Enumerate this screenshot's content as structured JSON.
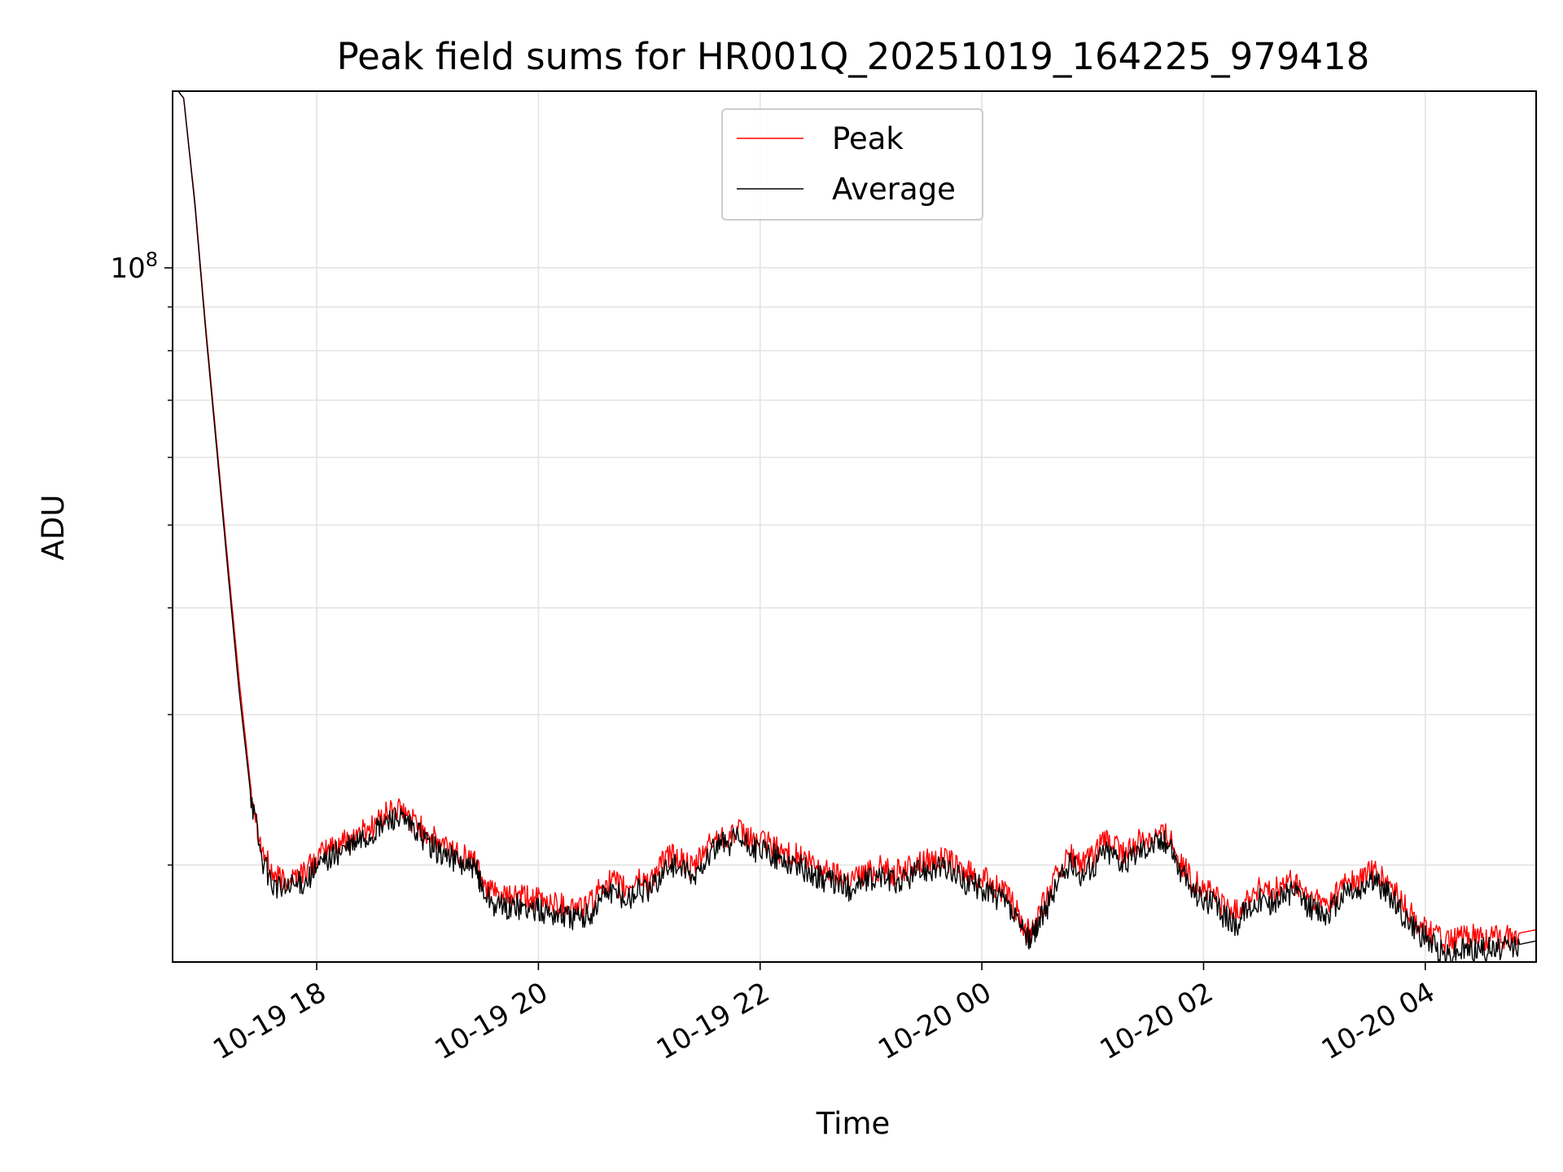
{
  "chart_data": {
    "type": "line",
    "title": "Peak field sums for HR001Q_20251019_164225_979418",
    "xlabel": "Time",
    "ylabel": "ADU",
    "y_scale": "log",
    "ylim": [
      15400000,
      161000000
    ],
    "xlim_hours": [
      16.7,
      29.0
    ],
    "x_ticks": [
      {
        "hour": 18,
        "label": "10-19 18"
      },
      {
        "hour": 20,
        "label": "10-19 20"
      },
      {
        "hour": 22,
        "label": "10-19 22"
      },
      {
        "hour": 24,
        "label": "10-20 00"
      },
      {
        "hour": 26,
        "label": "10-20 02"
      },
      {
        "hour": 28,
        "label": "10-20 04"
      }
    ],
    "y_major_ticks": [
      {
        "value": 100000000,
        "base": "10",
        "exponent": "8"
      }
    ],
    "y_minor_ticks": [
      20000000,
      30000000,
      40000000,
      50000000,
      60000000,
      70000000,
      80000000,
      90000000,
      200000000
    ],
    "grid": true,
    "legend_position": "upper center",
    "legend": [
      "Peak",
      "Average"
    ],
    "series": [
      {
        "name": "Peak",
        "color": "#ff0000",
        "points": [
          [
            16.75,
            161000000
          ],
          [
            16.8,
            158000000
          ],
          [
            16.9,
            120000000
          ],
          [
            17.0,
            85000000
          ],
          [
            17.1,
            62000000
          ],
          [
            17.2,
            45000000
          ],
          [
            17.3,
            33000000
          ],
          [
            17.4,
            25000000
          ],
          [
            17.5,
            21000000
          ],
          [
            17.6,
            19500000
          ],
          [
            17.7,
            19200000
          ],
          [
            17.8,
            19400000
          ],
          [
            17.9,
            19700000
          ],
          [
            18.0,
            20300000
          ],
          [
            18.1,
            20900000
          ],
          [
            18.2,
            21200000
          ],
          [
            18.3,
            21500000
          ],
          [
            18.4,
            21900000
          ],
          [
            18.5,
            22200000
          ],
          [
            18.6,
            22800000
          ],
          [
            18.7,
            23300000
          ],
          [
            18.8,
            22900000
          ],
          [
            18.9,
            22400000
          ],
          [
            19.0,
            21800000
          ],
          [
            19.1,
            21200000
          ],
          [
            19.2,
            21000000
          ],
          [
            19.3,
            20600000
          ],
          [
            19.4,
            20300000
          ],
          [
            19.45,
            20100000
          ],
          [
            19.5,
            19200000
          ],
          [
            19.6,
            18500000
          ],
          [
            19.7,
            18300000
          ],
          [
            19.8,
            18400000
          ],
          [
            19.9,
            18300000
          ],
          [
            20.0,
            18200000
          ],
          [
            20.1,
            18100000
          ],
          [
            20.2,
            18000000
          ],
          [
            20.3,
            17900000
          ],
          [
            20.4,
            17800000
          ],
          [
            20.5,
            18200000
          ],
          [
            20.6,
            19200000
          ],
          [
            20.7,
            19000000
          ],
          [
            20.8,
            18700000
          ],
          [
            20.9,
            19300000
          ],
          [
            21.0,
            19100000
          ],
          [
            21.1,
            20000000
          ],
          [
            21.2,
            20600000
          ],
          [
            21.3,
            20200000
          ],
          [
            21.4,
            19700000
          ],
          [
            21.5,
            20800000
          ],
          [
            21.6,
            21500000
          ],
          [
            21.7,
            21700000
          ],
          [
            21.8,
            21900000
          ],
          [
            21.9,
            21500000
          ],
          [
            22.0,
            21300000
          ],
          [
            22.1,
            21100000
          ],
          [
            22.2,
            20700000
          ],
          [
            22.3,
            20600000
          ],
          [
            22.4,
            20300000
          ],
          [
            22.5,
            19900000
          ],
          [
            22.6,
            19700000
          ],
          [
            22.7,
            19500000
          ],
          [
            22.8,
            19300000
          ],
          [
            22.9,
            19500000
          ],
          [
            23.0,
            19700000
          ],
          [
            23.1,
            19900000
          ],
          [
            23.2,
            19600000
          ],
          [
            23.3,
            19700000
          ],
          [
            23.4,
            20100000
          ],
          [
            23.5,
            20300000
          ],
          [
            23.6,
            20400000
          ],
          [
            23.7,
            20200000
          ],
          [
            23.8,
            19800000
          ],
          [
            23.9,
            19500000
          ],
          [
            24.0,
            19300000
          ],
          [
            24.1,
            19000000
          ],
          [
            24.2,
            18600000
          ],
          [
            24.3,
            17800000
          ],
          [
            24.4,
            16800000
          ],
          [
            24.45,
            16900000
          ],
          [
            24.5,
            17500000
          ],
          [
            24.6,
            18500000
          ],
          [
            24.7,
            19800000
          ],
          [
            24.8,
            20500000
          ],
          [
            24.9,
            20000000
          ],
          [
            25.0,
            20400000
          ],
          [
            25.1,
            21300000
          ],
          [
            25.2,
            21100000
          ],
          [
            25.3,
            20500000
          ],
          [
            25.4,
            21300000
          ],
          [
            25.5,
            21600000
          ],
          [
            25.6,
            21800000
          ],
          [
            25.7,
            21700000
          ],
          [
            25.8,
            20000000
          ],
          [
            25.9,
            19200000
          ],
          [
            26.0,
            18800000
          ],
          [
            26.1,
            18500000
          ],
          [
            26.2,
            17800000
          ],
          [
            26.3,
            17600000
          ],
          [
            26.4,
            18300000
          ],
          [
            26.5,
            18800000
          ],
          [
            26.6,
            18500000
          ],
          [
            26.7,
            18900000
          ],
          [
            26.8,
            19100000
          ],
          [
            26.9,
            18600000
          ],
          [
            27.0,
            18200000
          ],
          [
            27.1,
            18000000
          ],
          [
            27.2,
            18500000
          ],
          [
            27.3,
            19300000
          ],
          [
            27.4,
            19000000
          ],
          [
            27.5,
            19800000
          ],
          [
            27.6,
            19300000
          ],
          [
            27.7,
            18800000
          ],
          [
            27.8,
            18000000
          ],
          [
            27.9,
            17300000
          ],
          [
            28.0,
            16900000
          ],
          [
            28.1,
            16500000
          ],
          [
            28.2,
            16200000
          ],
          [
            28.3,
            16400000
          ],
          [
            28.4,
            16500000
          ],
          [
            28.5,
            16500000
          ],
          [
            28.6,
            16400000
          ],
          [
            28.7,
            16500000
          ],
          [
            28.8,
            16600000
          ],
          [
            28.9,
            16700000
          ],
          [
            29.0,
            16800000
          ]
        ]
      },
      {
        "name": "Average",
        "color": "#000000",
        "points": [
          [
            16.75,
            161000000
          ],
          [
            16.8,
            158000000
          ],
          [
            16.9,
            119000000
          ],
          [
            17.0,
            84000000
          ],
          [
            17.1,
            61000000
          ],
          [
            17.2,
            44000000
          ],
          [
            17.3,
            32000000
          ],
          [
            17.4,
            24500000
          ],
          [
            17.5,
            20500000
          ],
          [
            17.6,
            19000000
          ],
          [
            17.7,
            18700000
          ],
          [
            17.8,
            18900000
          ],
          [
            17.9,
            19200000
          ],
          [
            18.0,
            19800000
          ],
          [
            18.1,
            20400000
          ],
          [
            18.2,
            20700000
          ],
          [
            18.3,
            21000000
          ],
          [
            18.4,
            21400000
          ],
          [
            18.5,
            21700000
          ],
          [
            18.6,
            22300000
          ],
          [
            18.7,
            22800000
          ],
          [
            18.8,
            22400000
          ],
          [
            18.9,
            21900000
          ],
          [
            19.0,
            21300000
          ],
          [
            19.1,
            20700000
          ],
          [
            19.2,
            20500000
          ],
          [
            19.3,
            20100000
          ],
          [
            19.4,
            19800000
          ],
          [
            19.45,
            19600000
          ],
          [
            19.5,
            18700000
          ],
          [
            19.6,
            18000000
          ],
          [
            19.7,
            17800000
          ],
          [
            19.8,
            17900000
          ],
          [
            19.9,
            17800000
          ],
          [
            20.0,
            17700000
          ],
          [
            20.1,
            17600000
          ],
          [
            20.2,
            17500000
          ],
          [
            20.3,
            17400000
          ],
          [
            20.4,
            17300000
          ],
          [
            20.5,
            17700000
          ],
          [
            20.6,
            18700000
          ],
          [
            20.7,
            18500000
          ],
          [
            20.8,
            18200000
          ],
          [
            20.9,
            18800000
          ],
          [
            21.0,
            18600000
          ],
          [
            21.1,
            19500000
          ],
          [
            21.2,
            20100000
          ],
          [
            21.3,
            19700000
          ],
          [
            21.4,
            19200000
          ],
          [
            21.5,
            20300000
          ],
          [
            21.6,
            21000000
          ],
          [
            21.7,
            21200000
          ],
          [
            21.8,
            21400000
          ],
          [
            21.9,
            21000000
          ],
          [
            22.0,
            20800000
          ],
          [
            22.1,
            20600000
          ],
          [
            22.2,
            20200000
          ],
          [
            22.3,
            20100000
          ],
          [
            22.4,
            19800000
          ],
          [
            22.5,
            19400000
          ],
          [
            22.6,
            19200000
          ],
          [
            22.7,
            19000000
          ],
          [
            22.8,
            18800000
          ],
          [
            22.9,
            19000000
          ],
          [
            23.0,
            19200000
          ],
          [
            23.1,
            19400000
          ],
          [
            23.2,
            19100000
          ],
          [
            23.3,
            19200000
          ],
          [
            23.4,
            19600000
          ],
          [
            23.5,
            19800000
          ],
          [
            23.6,
            19900000
          ],
          [
            23.7,
            19700000
          ],
          [
            23.8,
            19300000
          ],
          [
            23.9,
            19000000
          ],
          [
            24.0,
            18800000
          ],
          [
            24.1,
            18500000
          ],
          [
            24.2,
            18100000
          ],
          [
            24.3,
            17300000
          ],
          [
            24.4,
            16400000
          ],
          [
            24.45,
            16500000
          ],
          [
            24.5,
            17000000
          ],
          [
            24.6,
            18000000
          ],
          [
            24.7,
            19300000
          ],
          [
            24.8,
            20000000
          ],
          [
            24.9,
            19500000
          ],
          [
            25.0,
            19900000
          ],
          [
            25.1,
            20800000
          ],
          [
            25.2,
            20600000
          ],
          [
            25.3,
            20000000
          ],
          [
            25.4,
            20800000
          ],
          [
            25.5,
            21100000
          ],
          [
            25.6,
            21300000
          ],
          [
            25.7,
            21200000
          ],
          [
            25.8,
            19500000
          ],
          [
            25.9,
            18700000
          ],
          [
            26.0,
            18300000
          ],
          [
            26.1,
            18000000
          ],
          [
            26.2,
            17300000
          ],
          [
            26.3,
            17100000
          ],
          [
            26.4,
            17800000
          ],
          [
            26.5,
            18300000
          ],
          [
            26.6,
            18000000
          ],
          [
            26.7,
            18400000
          ],
          [
            26.8,
            18600000
          ],
          [
            26.9,
            18100000
          ],
          [
            27.0,
            17700000
          ],
          [
            27.1,
            17500000
          ],
          [
            27.2,
            18000000
          ],
          [
            27.3,
            18800000
          ],
          [
            27.4,
            18500000
          ],
          [
            27.5,
            19300000
          ],
          [
            27.6,
            18800000
          ],
          [
            27.7,
            18300000
          ],
          [
            27.8,
            17500000
          ],
          [
            27.9,
            16800000
          ],
          [
            28.0,
            16400000
          ],
          [
            28.1,
            16000000
          ],
          [
            28.2,
            15700000
          ],
          [
            28.3,
            15900000
          ],
          [
            28.4,
            16000000
          ],
          [
            28.5,
            16000000
          ],
          [
            28.6,
            15900000
          ],
          [
            28.7,
            16000000
          ],
          [
            28.8,
            16100000
          ],
          [
            28.9,
            16200000
          ],
          [
            29.0,
            16300000
          ]
        ]
      }
    ]
  }
}
